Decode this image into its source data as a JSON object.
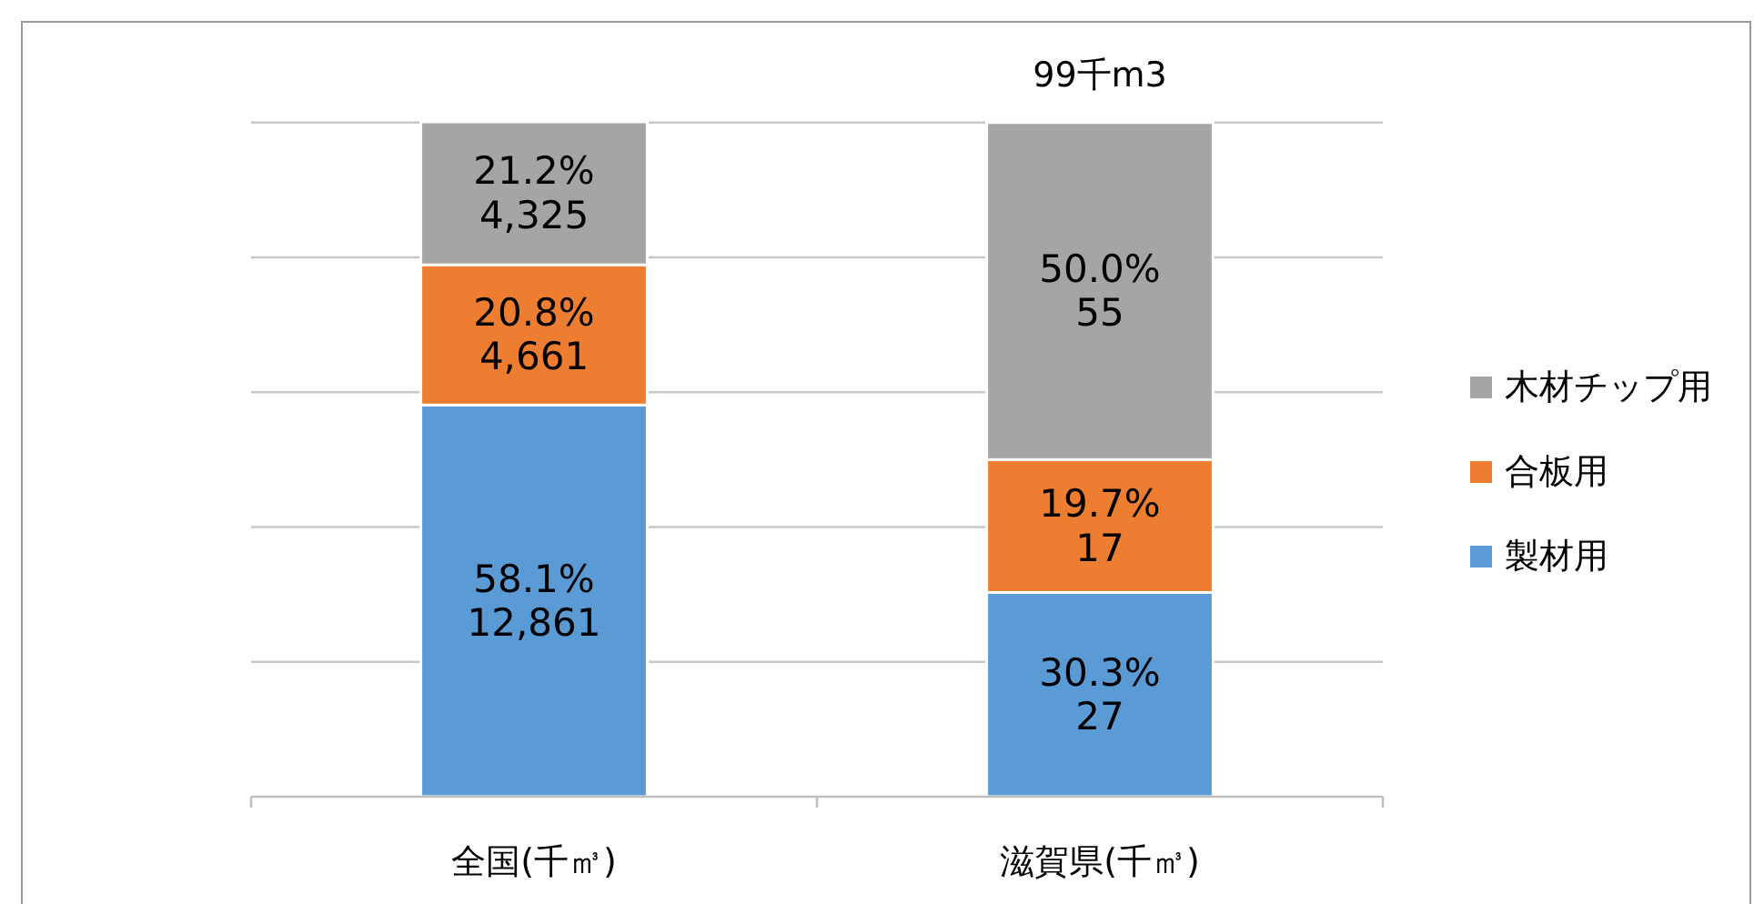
{
  "chart_data": {
    "type": "bar",
    "stacked": true,
    "ylim": [
      0,
      100.1
    ],
    "yticks": [
      {
        "value": 0,
        "label": null
      },
      {
        "value": 20,
        "label": null
      },
      {
        "value": 40,
        "label": null
      },
      {
        "value": 60,
        "label": null
      },
      {
        "value": 80,
        "label": null
      },
      {
        "value": 100,
        "label": null
      }
    ],
    "tick_labels": "x",
    "grid": "y",
    "legend": "right",
    "categories": [
      "全国(千㎥)",
      "滋賀県(千㎥)"
    ],
    "series": [
      {
        "name": "製材用",
        "color": "#5b9bd5",
        "values": [
          58.1,
          30.3
        ],
        "value_labels": [
          "58.1%\n12,861",
          "30.3%\n27"
        ]
      },
      {
        "name": "合板用",
        "color": "#ed7d31",
        "values": [
          20.8,
          19.7
        ],
        "value_labels": [
          "20.8%\n4,661",
          "19.7%\n17"
        ]
      },
      {
        "name": "木材チップ用",
        "color": "#a5a5a5",
        "values": [
          21.2,
          50.0
        ],
        "value_labels": [
          "21.2%\n4,325",
          "50.0%\n55"
        ]
      }
    ],
    "totals": [
      null,
      "99千m3"
    ]
  }
}
